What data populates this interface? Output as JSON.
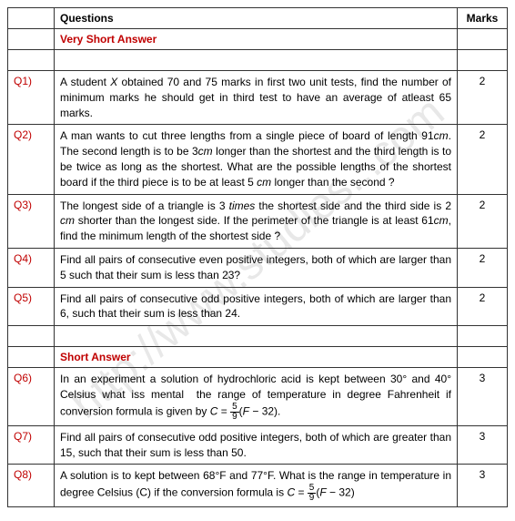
{
  "headers": {
    "col_q": "",
    "col_question": "Questions",
    "col_marks": "Marks"
  },
  "sections": {
    "very_short": "Very Short Answer",
    "short": "Short Answer"
  },
  "rows": [
    {
      "qnum": "Q1)",
      "text": "A student X obtained 70 and 75 marks in first two unit tests, find the number of minimum marks he should get in third test to have an average of atleast 65 marks.",
      "marks": "2"
    },
    {
      "qnum": "Q2)",
      "text": "A man wants to cut three lengths from a single piece of board of length 91cm. The second length is to be 3cm longer than the shortest and the third length is to be twice as long as the shortest. What are the possible lengths of the shortest board if the third piece is to be at least 5 cm longer than the second ?",
      "marks": "2"
    },
    {
      "qnum": "Q3)",
      "text": "The longest side of a triangle is 3 times the shortest side and the third side is 2 cm shorter than the longest side. If the perimeter of the triangle is at least 61cm, find the minimum length of the shortest side ?",
      "marks": "2"
    },
    {
      "qnum": "Q4)",
      "text": "Find all pairs of consecutive even positive integers, both of which are larger than 5 such that their sum is less than 23?",
      "marks": "2"
    },
    {
      "qnum": "Q5)",
      "text": "Find all pairs of consecutive odd positive integers, both of which are larger than 6, such that their sum is less than 24.",
      "marks": "2"
    },
    {
      "qnum": "Q6)",
      "text": "In an experiment a solution of hydrochloric acid is kept between 30° and 40° Celsius what iss mental  the range of temperature in degree Fahrenheit if conversion formula is given by C = (5/9)(F − 32).",
      "marks": "3"
    },
    {
      "qnum": "Q7)",
      "text": "Find all pairs of consecutive odd positive integers, both of which are greater than 15, such that their sum is less than 50.",
      "marks": "3"
    },
    {
      "qnum": "Q8)",
      "text": "A solution is to kept between 68°F and 77°F. What is the range in temperature in degree Celsius (C) if the conversion formula is C = (5/9)(F − 32)",
      "marks": "3"
    }
  ]
}
